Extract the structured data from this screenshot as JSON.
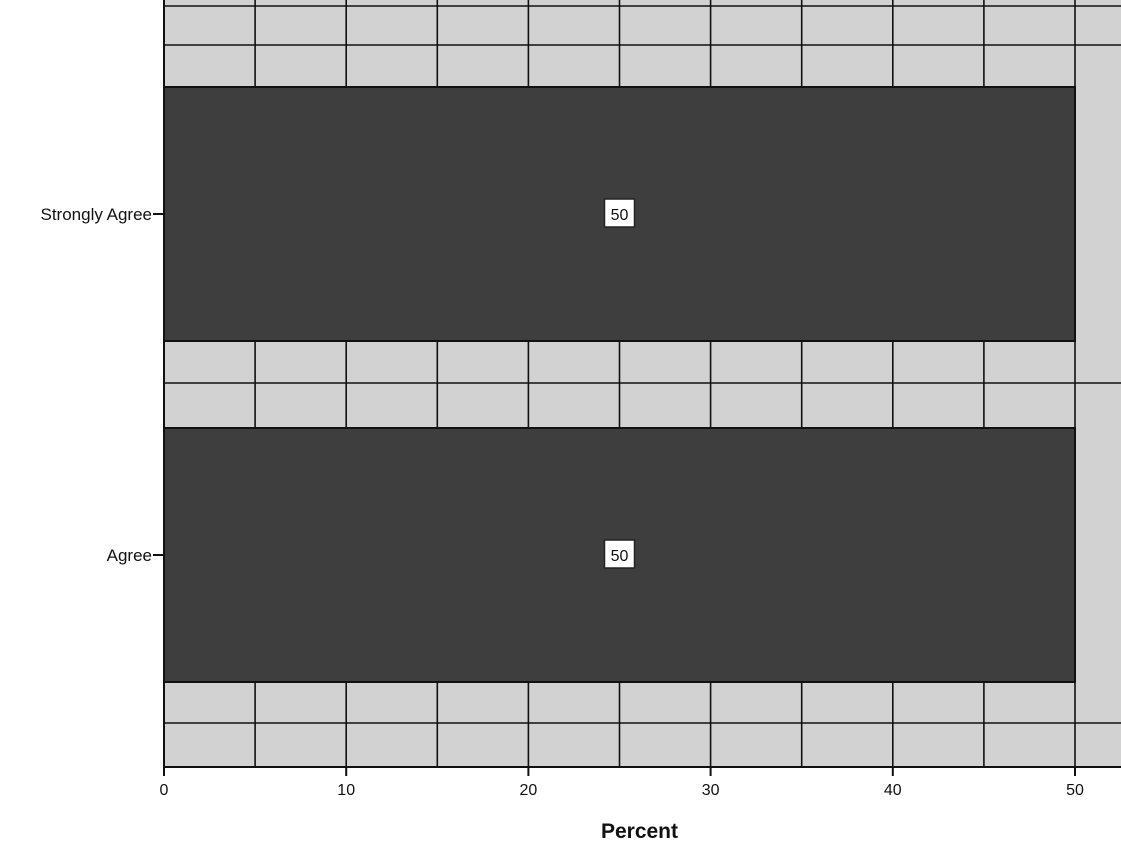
{
  "chart_data": {
    "type": "bar",
    "orientation": "horizontal",
    "title": "",
    "xlabel": "Percent",
    "ylabel": "",
    "categories": [
      "Strongly Agree",
      "Agree"
    ],
    "values": [
      50,
      50
    ],
    "data_labels": [
      "50",
      "50"
    ],
    "xlim": [
      0,
      52
    ],
    "xticks": [
      0,
      10,
      20,
      30,
      40,
      50
    ],
    "grid": true,
    "legend": "none",
    "colors": {
      "plot_background": "#d2d2d2",
      "grid_line": "#111111",
      "bar_fill": "#3e3e3e",
      "bar_stroke": "#111111"
    }
  }
}
